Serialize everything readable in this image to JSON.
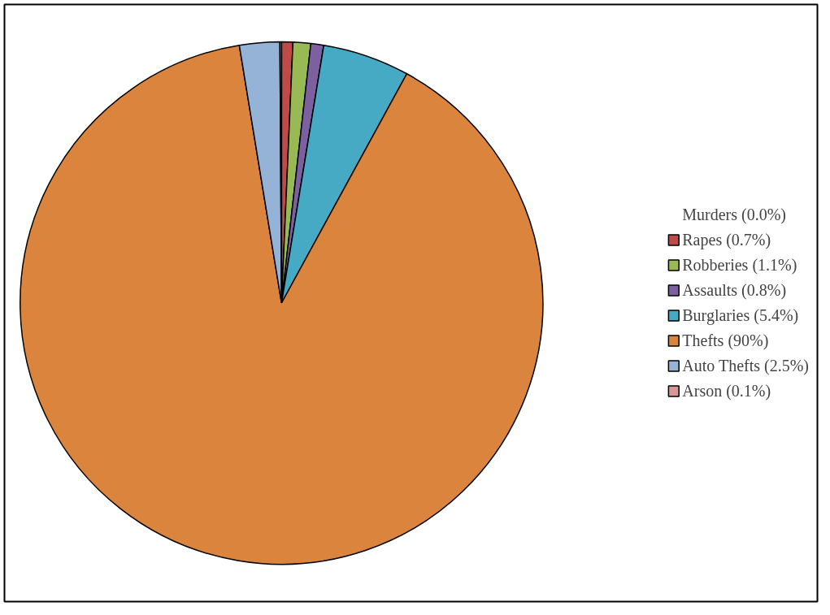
{
  "chart_data": {
    "type": "pie",
    "categories": [
      "Murders (0.0%)",
      "Rapes (0.7%)",
      "Robberies (1.1%)",
      "Assaults (0.8%)",
      "Burglaries (5.4%)",
      "Thefts (90%)",
      "Auto Thefts (2.5%)",
      "Arson (0.1%)"
    ],
    "values": [
      0.0,
      0.7,
      1.1,
      0.8,
      5.4,
      90,
      2.5,
      0.1
    ],
    "colors": [
      "#4a7ebb",
      "#be4b48",
      "#98b954",
      "#7d60a0",
      "#46aac5",
      "#db843d",
      "#95b3d7",
      "#d99694"
    ],
    "legend": "right"
  }
}
